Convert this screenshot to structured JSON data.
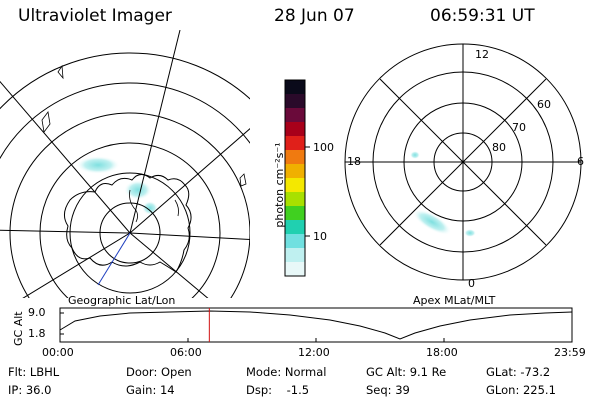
{
  "header": {
    "instrument": "Ultraviolet Imager",
    "date": "28 Jun 07",
    "time": "06:59:31 UT"
  },
  "colorbar": {
    "unit_label": "photon cm⁻²s⁻¹",
    "ticks": [
      "100",
      "10"
    ],
    "colors": [
      "#0a0a1a",
      "#2a0a2a",
      "#6a0a3a",
      "#a8001a",
      "#e0201a",
      "#f07a10",
      "#f0b000",
      "#f4e800",
      "#a8e000",
      "#40d020",
      "#20d0b0",
      "#70e0e0",
      "#bff0f0",
      "#e8f8f8"
    ]
  },
  "left_map": {
    "caption": "Geographic Lat/Lon",
    "projection": "geographic"
  },
  "right_map": {
    "caption": "Apex MLat/MLT",
    "mlt_labels": {
      "top": "12",
      "bottom": "0",
      "left": "18",
      "right": "6"
    },
    "lat_labels": [
      "60",
      "70",
      "80"
    ]
  },
  "altitude_plot": {
    "ylabel": "GC Alt",
    "yticks": [
      "9.0",
      "1.8"
    ],
    "xticks": [
      "00:00",
      "06:00",
      "12:00",
      "18:00",
      "23:59"
    ],
    "current_time_marker_hours": 7.0,
    "marker_color": "#d01010"
  },
  "status": {
    "flt": "Flt: LBHL",
    "ip": "IP: 36.0",
    "door": "Door: Open",
    "gain": "Gain: 14",
    "mode": "Mode: Normal",
    "dsp": "Dsp:    -1.5",
    "gc_alt": "GC Alt: 9.1 Re",
    "seq": "Seq: 39",
    "glat": "GLat: -73.2",
    "glon": "GLon: 225.1"
  }
}
